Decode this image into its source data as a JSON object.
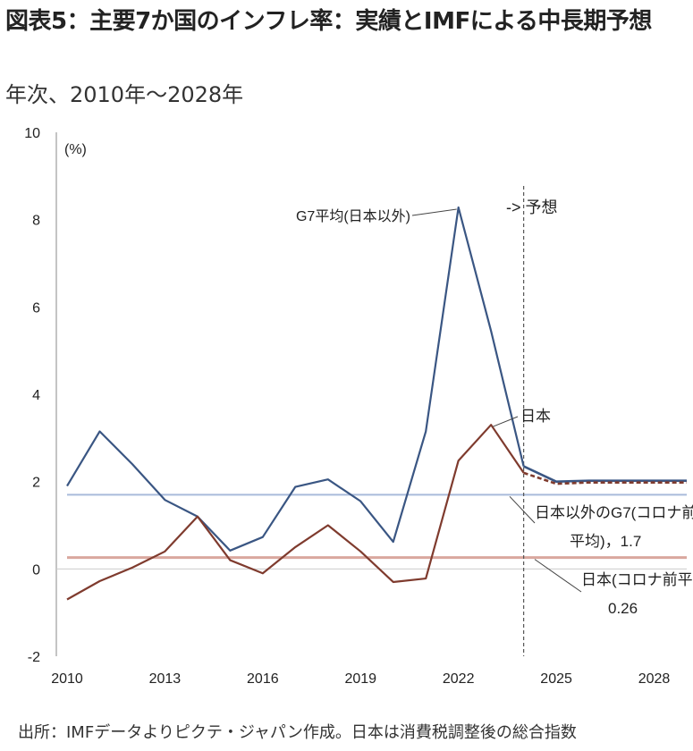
{
  "title": "図表5：主要7か国のインフレ率：実績とIMFによる中長期予想",
  "subtitle": "年次、2010年～2028年",
  "source": "出所：IMFデータよりピクテ・ジャパン作成。日本は消費税調整後の総合指数",
  "colors": {
    "g7_line": "#3a5683",
    "japan_line": "#7f3b2e",
    "g7_avg_line": "#a9bbdb",
    "japan_avg_line": "#d9a79e",
    "forecast_divider": "#555555",
    "axis": "#888888"
  },
  "chart_data": {
    "type": "line",
    "title": "図表5：主要7か国のインフレ率：実績とIMFによる中長期予想",
    "subtitle": "年次、2010年～2028年",
    "ylabel": "(%)",
    "xlabel": "",
    "ylim": [
      -2,
      10
    ],
    "xlim": [
      2010,
      2029
    ],
    "yticks": [
      "-2",
      "0",
      "2",
      "4",
      "6",
      "8",
      "10"
    ],
    "yticks_values": [
      -2,
      0,
      2,
      4,
      6,
      8,
      10
    ],
    "xticks": [
      "2010",
      "2013",
      "2016",
      "2019",
      "2022",
      "2025",
      "2028"
    ],
    "xticks_values": [
      2010,
      2013,
      2016,
      2019,
      2022,
      2025,
      2028
    ],
    "grid": false,
    "forecast_start": 2024,
    "forecast_label": "-> 予想",
    "series": [
      {
        "name": "G7平均(日本以外)",
        "x": [
          2010,
          2011,
          2012,
          2013,
          2014,
          2015,
          2016,
          2017,
          2018,
          2019,
          2020,
          2021,
          2022,
          2023,
          2024,
          2025,
          2026,
          2027,
          2028,
          2029
        ],
        "values": [
          1.9,
          3.15,
          2.4,
          1.58,
          1.2,
          0.42,
          0.73,
          1.88,
          2.05,
          1.55,
          0.62,
          3.15,
          8.28,
          5.45,
          2.35,
          2.0,
          2.02,
          2.02,
          2.02,
          2.02
        ]
      },
      {
        "name": "日本",
        "x": [
          2010,
          2011,
          2012,
          2013,
          2014,
          2015,
          2016,
          2017,
          2018,
          2019,
          2020,
          2021,
          2022,
          2023,
          2024,
          2025,
          2026,
          2027,
          2028,
          2029
        ],
        "values": [
          -0.7,
          -0.28,
          0.03,
          0.4,
          1.2,
          0.2,
          -0.1,
          0.5,
          1.0,
          0.4,
          -0.3,
          -0.22,
          2.48,
          3.3,
          2.2,
          1.95,
          1.98,
          1.98,
          1.98,
          1.98
        ]
      }
    ],
    "reference_lines": [
      {
        "name": "日本以外のG7(コロナ前平均)",
        "value": 1.7
      },
      {
        "name": "日本(コロナ前平均)",
        "value": 0.26
      }
    ],
    "annotations": {
      "g7_label": "G7平均(日本以外)",
      "japan_label": "日本",
      "g7_avg_label_line1": "日本以外のG7(コロナ前",
      "g7_avg_label_line2": "平均)，1.7",
      "japan_avg_label_line1": "日本(コロナ前平均)，",
      "japan_avg_label_line2": "0.26"
    }
  }
}
